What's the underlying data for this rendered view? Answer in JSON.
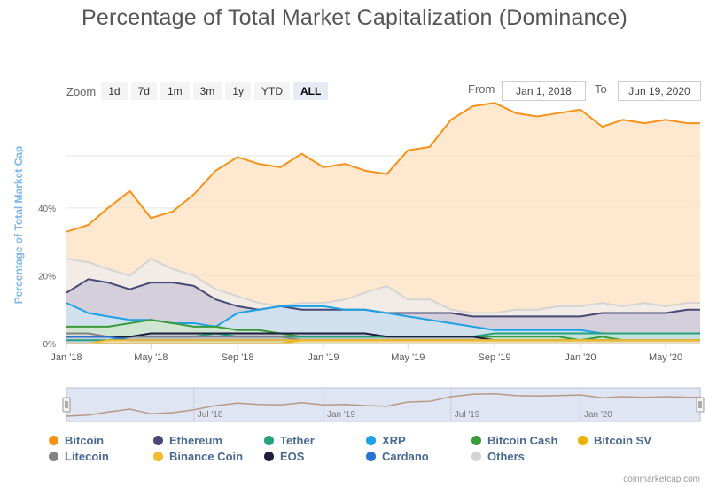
{
  "title": "Percentage of Total Market Capitalization (Dominance)",
  "zoom": {
    "label": "Zoom",
    "buttons": [
      "1d",
      "7d",
      "1m",
      "3m",
      "1y",
      "YTD",
      "ALL"
    ],
    "active": "ALL"
  },
  "range": {
    "from_label": "From",
    "from_value": "Jan 1, 2018",
    "to_label": "To",
    "to_value": "Jun 19, 2020"
  },
  "credit": "coinmarketcap.com",
  "chart_data": {
    "type": "area",
    "title": "Percentage of Total Market Capitalization (Dominance)",
    "ylabel": "Percentage of Total Market Cap",
    "ylim": [
      0,
      70
    ],
    "yticks": [
      0,
      20,
      40
    ],
    "ytick_labels": [
      "0%",
      "20%",
      "40%"
    ],
    "xlim": [
      "2018-01-01",
      "2020-06-19"
    ],
    "xticks": [
      "2018-01-01",
      "2018-05-01",
      "2018-09-01",
      "2019-01-01",
      "2019-05-01",
      "2019-09-01",
      "2020-01-01",
      "2020-05-01"
    ],
    "xtick_labels": [
      "Jan '18",
      "May '18",
      "Sep '18",
      "Jan '19",
      "May '19",
      "Sep '19",
      "Jan '20",
      "May '20"
    ],
    "grid": true,
    "legend_position": "bottom",
    "navigator": {
      "labels": [
        "Jul '18",
        "Jan '19",
        "Jul '19",
        "Jan '20"
      ],
      "ticks": [
        "2018-07-01",
        "2019-01-01",
        "2019-07-01",
        "2020-01-01"
      ]
    },
    "x": [
      "2018-01-01",
      "2018-02-01",
      "2018-03-01",
      "2018-04-01",
      "2018-05-01",
      "2018-06-01",
      "2018-07-01",
      "2018-08-01",
      "2018-09-01",
      "2018-10-01",
      "2018-11-01",
      "2018-12-01",
      "2019-01-01",
      "2019-02-01",
      "2019-03-01",
      "2019-04-01",
      "2019-05-01",
      "2019-06-01",
      "2019-07-01",
      "2019-08-01",
      "2019-09-01",
      "2019-10-01",
      "2019-11-01",
      "2019-12-01",
      "2020-01-01",
      "2020-02-01",
      "2020-03-01",
      "2020-04-01",
      "2020-05-01",
      "2020-06-01",
      "2020-06-19"
    ],
    "series": [
      {
        "name": "Bitcoin",
        "color": "#f7931a",
        "fill": "#fde0bf",
        "values": [
          33,
          35,
          40,
          45,
          37,
          39,
          44,
          51,
          55,
          53,
          52,
          56,
          52,
          53,
          51,
          50,
          57,
          58,
          66,
          70,
          71,
          68,
          67,
          68,
          69,
          64,
          66,
          65,
          66,
          65,
          65
        ]
      },
      {
        "name": "Ethereum",
        "color": "#464a75",
        "fill": "#c9c6d6",
        "values": [
          15,
          19,
          18,
          16,
          18,
          18,
          17,
          13,
          11,
          10,
          11,
          10,
          10,
          10,
          10,
          9,
          9,
          9,
          9,
          8,
          8,
          8,
          8,
          8,
          8,
          9,
          9,
          9,
          9,
          10,
          10
        ]
      },
      {
        "name": "Tether",
        "color": "#26a17b",
        "fill": "#bfe3d8",
        "values": [
          1,
          1,
          1,
          2,
          2,
          2,
          2,
          3,
          2,
          2,
          2,
          2,
          2,
          2,
          2,
          2,
          2,
          2,
          2,
          2,
          3,
          3,
          3,
          3,
          3,
          3,
          3,
          3,
          3,
          3,
          3
        ]
      },
      {
        "name": "XRP",
        "color": "#1ea1e6",
        "fill": "#cfe6f3",
        "values": [
          12,
          9,
          8,
          7,
          7,
          6,
          6,
          5,
          9,
          10,
          11,
          11,
          11,
          10,
          10,
          9,
          8,
          7,
          6,
          5,
          4,
          4,
          4,
          4,
          4,
          3,
          3,
          3,
          3,
          3,
          3
        ]
      },
      {
        "name": "Bitcoin Cash",
        "color": "#3a9a3a",
        "fill": "#d2e8c8",
        "values": [
          5,
          5,
          5,
          6,
          7,
          6,
          5,
          5,
          4,
          4,
          3,
          2,
          2,
          2,
          2,
          2,
          2,
          2,
          2,
          2,
          2,
          2,
          2,
          2,
          1,
          2,
          1,
          1,
          1,
          1,
          1
        ]
      },
      {
        "name": "Bitcoin SV",
        "color": "#eab300",
        "fill": "#f5e3a6",
        "values": [
          0,
          0,
          0,
          0,
          0,
          0,
          0,
          0,
          0,
          0,
          0,
          1,
          1,
          1,
          1,
          1,
          1,
          1,
          1,
          1,
          1,
          1,
          1,
          1,
          1,
          1,
          1,
          1,
          1,
          1,
          1
        ]
      },
      {
        "name": "Litecoin",
        "color": "#838383",
        "fill": "#dcdcdc",
        "values": [
          3,
          3,
          2,
          2,
          2,
          2,
          2,
          2,
          2,
          2,
          2,
          1,
          1,
          1,
          1,
          1,
          1,
          1,
          1,
          1,
          1,
          1,
          1,
          1,
          1,
          1,
          1,
          1,
          1,
          1,
          1
        ]
      },
      {
        "name": "Binance Coin",
        "color": "#f3ba2f",
        "fill": "#f6e1a9",
        "values": [
          0,
          0,
          1,
          1,
          1,
          1,
          1,
          1,
          1,
          1,
          1,
          1,
          1,
          1,
          1,
          1,
          1,
          1,
          1,
          1,
          1,
          1,
          1,
          1,
          1,
          1,
          1,
          1,
          1,
          1,
          1
        ]
      },
      {
        "name": "EOS",
        "color": "#1c1f3f",
        "fill": "#b9bac6",
        "values": [
          2,
          2,
          2,
          2,
          3,
          3,
          3,
          3,
          3,
          3,
          3,
          3,
          3,
          3,
          3,
          2,
          2,
          2,
          2,
          2,
          1,
          1,
          1,
          1,
          1,
          1,
          1,
          1,
          1,
          1,
          1
        ]
      },
      {
        "name": "Cardano",
        "color": "#2a71d0",
        "fill": "#c4d7f0",
        "values": [
          2,
          2,
          2,
          1,
          1,
          1,
          1,
          1,
          1,
          1,
          1,
          1,
          1,
          1,
          1,
          1,
          1,
          1,
          1,
          1,
          1,
          1,
          1,
          1,
          1,
          1,
          1,
          1,
          1,
          1,
          1
        ]
      },
      {
        "name": "Others",
        "color": "#d4d4d4",
        "fill": "#efeded",
        "values": [
          25,
          24,
          22,
          20,
          25,
          22,
          20,
          16,
          14,
          12,
          11,
          12,
          12,
          13,
          15,
          17,
          13,
          13,
          10,
          9,
          9,
          10,
          10,
          11,
          11,
          12,
          11,
          12,
          11,
          12,
          12
        ]
      }
    ]
  }
}
